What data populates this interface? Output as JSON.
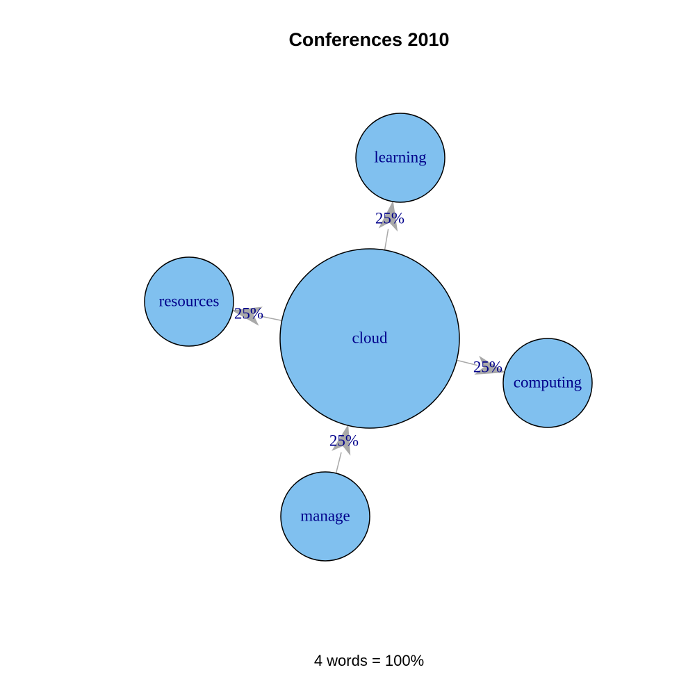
{
  "title": "Conferences 2010",
  "footer": "4 words = 100%",
  "colors": {
    "node_fill": "#80c0ef",
    "node_stroke": "#000000",
    "edge": "#a9a9a9",
    "label": "#00008b"
  },
  "graph": {
    "nodes": [
      {
        "id": "cloud",
        "label": "cloud",
        "size": "large"
      },
      {
        "id": "learning",
        "label": "learning",
        "size": "small"
      },
      {
        "id": "resources",
        "label": "resources",
        "size": "small"
      },
      {
        "id": "computing",
        "label": "computing",
        "size": "small"
      },
      {
        "id": "manage",
        "label": "manage",
        "size": "small"
      }
    ],
    "edges": [
      {
        "from": "manage",
        "to": "cloud",
        "label": "25%"
      },
      {
        "from": "cloud",
        "to": "learning",
        "label": "25%"
      },
      {
        "from": "cloud",
        "to": "resources",
        "label": "25%"
      },
      {
        "from": "cloud",
        "to": "computing",
        "label": "25%"
      }
    ]
  }
}
